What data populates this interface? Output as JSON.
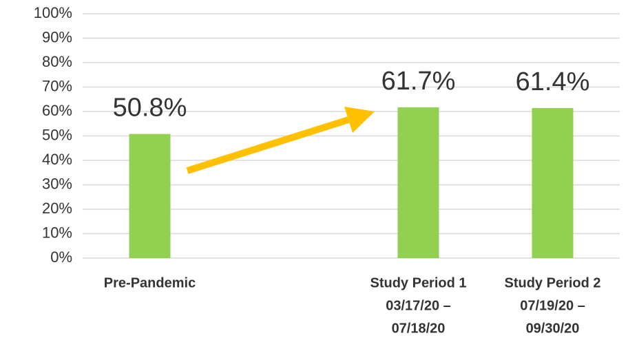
{
  "chart_data": {
    "type": "bar",
    "categories": [
      [
        "Pre-Pandemic"
      ],
      null,
      [
        "Study Period 1",
        "03/17/20 –",
        "07/18/20"
      ],
      [
        "Study Period 2",
        "07/19/20 –",
        "09/30/20"
      ]
    ],
    "values": [
      50.8,
      null,
      61.7,
      61.4
    ],
    "value_labels": [
      "50.8%",
      null,
      "61.7%",
      "61.4%"
    ],
    "color": "#92d050",
    "ylim": [
      0,
      100
    ],
    "yticks": [
      {
        "value": 0,
        "label": "0%"
      },
      {
        "value": 10,
        "label": "10%"
      },
      {
        "value": 20,
        "label": "20%"
      },
      {
        "value": 30,
        "label": "30%"
      },
      {
        "value": 40,
        "label": "40%"
      },
      {
        "value": 50,
        "label": "50%"
      },
      {
        "value": 60,
        "label": "60%"
      },
      {
        "value": 70,
        "label": "70%"
      },
      {
        "value": 80,
        "label": "80%"
      },
      {
        "value": 90,
        "label": "90%"
      },
      {
        "value": 100,
        "label": "100%"
      }
    ],
    "grid": true
  }
}
